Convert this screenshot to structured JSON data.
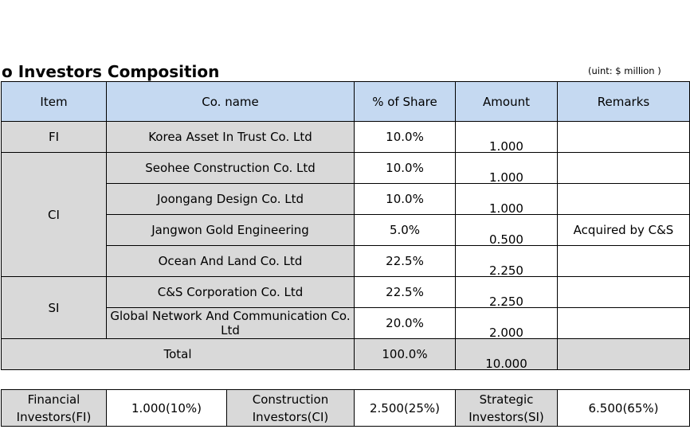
{
  "title": "o Investors Composition",
  "unit": "(uint: $ million )",
  "header": [
    "Item",
    "Co. name",
    "% of Share",
    "Amount",
    "Remarks"
  ],
  "groups": {
    "fi": "FI",
    "ci": "CI",
    "si": "SI"
  },
  "rows": [
    {
      "name": "Korea Asset In Trust Co. Ltd",
      "share": "10.0%",
      "amount": "1.000",
      "remarks": ""
    },
    {
      "name": "Seohee Construction Co. Ltd",
      "share": "10.0%",
      "amount": "1.000",
      "remarks": ""
    },
    {
      "name": "Joongang Design Co. Ltd",
      "share": "10.0%",
      "amount": "1.000",
      "remarks": ""
    },
    {
      "name": "Jangwon Gold Engineering",
      "share": "5.0%",
      "amount": "0.500",
      "remarks": "Acquired by C&S"
    },
    {
      "name": "Ocean And Land Co. Ltd",
      "share": "22.5%",
      "amount": "2.250",
      "remarks": ""
    },
    {
      "name": "C&S Corporation Co. Ltd",
      "share": "22.5%",
      "amount": "2.250",
      "remarks": ""
    },
    {
      "name": "Global Network And Communication Co. Ltd",
      "share": "20.0%",
      "amount": "2.000",
      "remarks": ""
    }
  ],
  "total": {
    "label": "Total",
    "share": "100.0%",
    "amount": "10.000",
    "remarks": ""
  },
  "summary": [
    {
      "label": "Financial Investors(FI)",
      "value": "1.000(10%)"
    },
    {
      "label": "Construction Investors(CI)",
      "value": "2.500(25%)"
    },
    {
      "label": "Strategic Investors(SI)",
      "value": "6.500(65%)"
    }
  ]
}
